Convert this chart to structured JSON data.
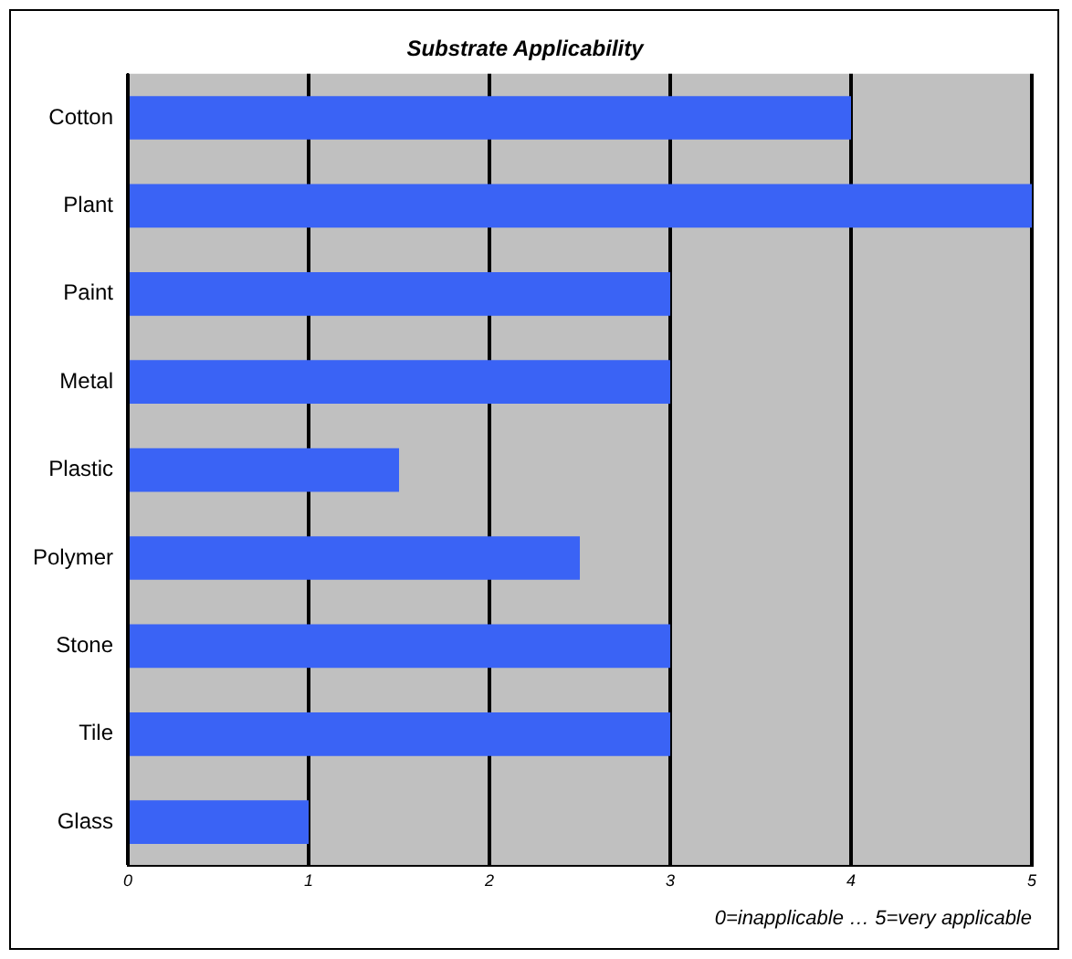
{
  "chart_data": {
    "type": "bar",
    "orientation": "horizontal",
    "title": "Substrate Applicability",
    "categories": [
      "Cotton",
      "Plant",
      "Paint",
      "Metal",
      "Plastic",
      "Polymer",
      "Stone",
      "Tile",
      "Glass"
    ],
    "values": [
      4,
      5,
      3,
      3,
      1.5,
      2.5,
      3,
      3,
      1
    ],
    "color": "#3a63f5",
    "xlim": [
      0,
      5
    ],
    "xticks": [
      0,
      1,
      2,
      3,
      4,
      5
    ],
    "grid": "x",
    "legend": false,
    "annotations": [
      "0=inapplicable … 5=very applicable"
    ]
  }
}
